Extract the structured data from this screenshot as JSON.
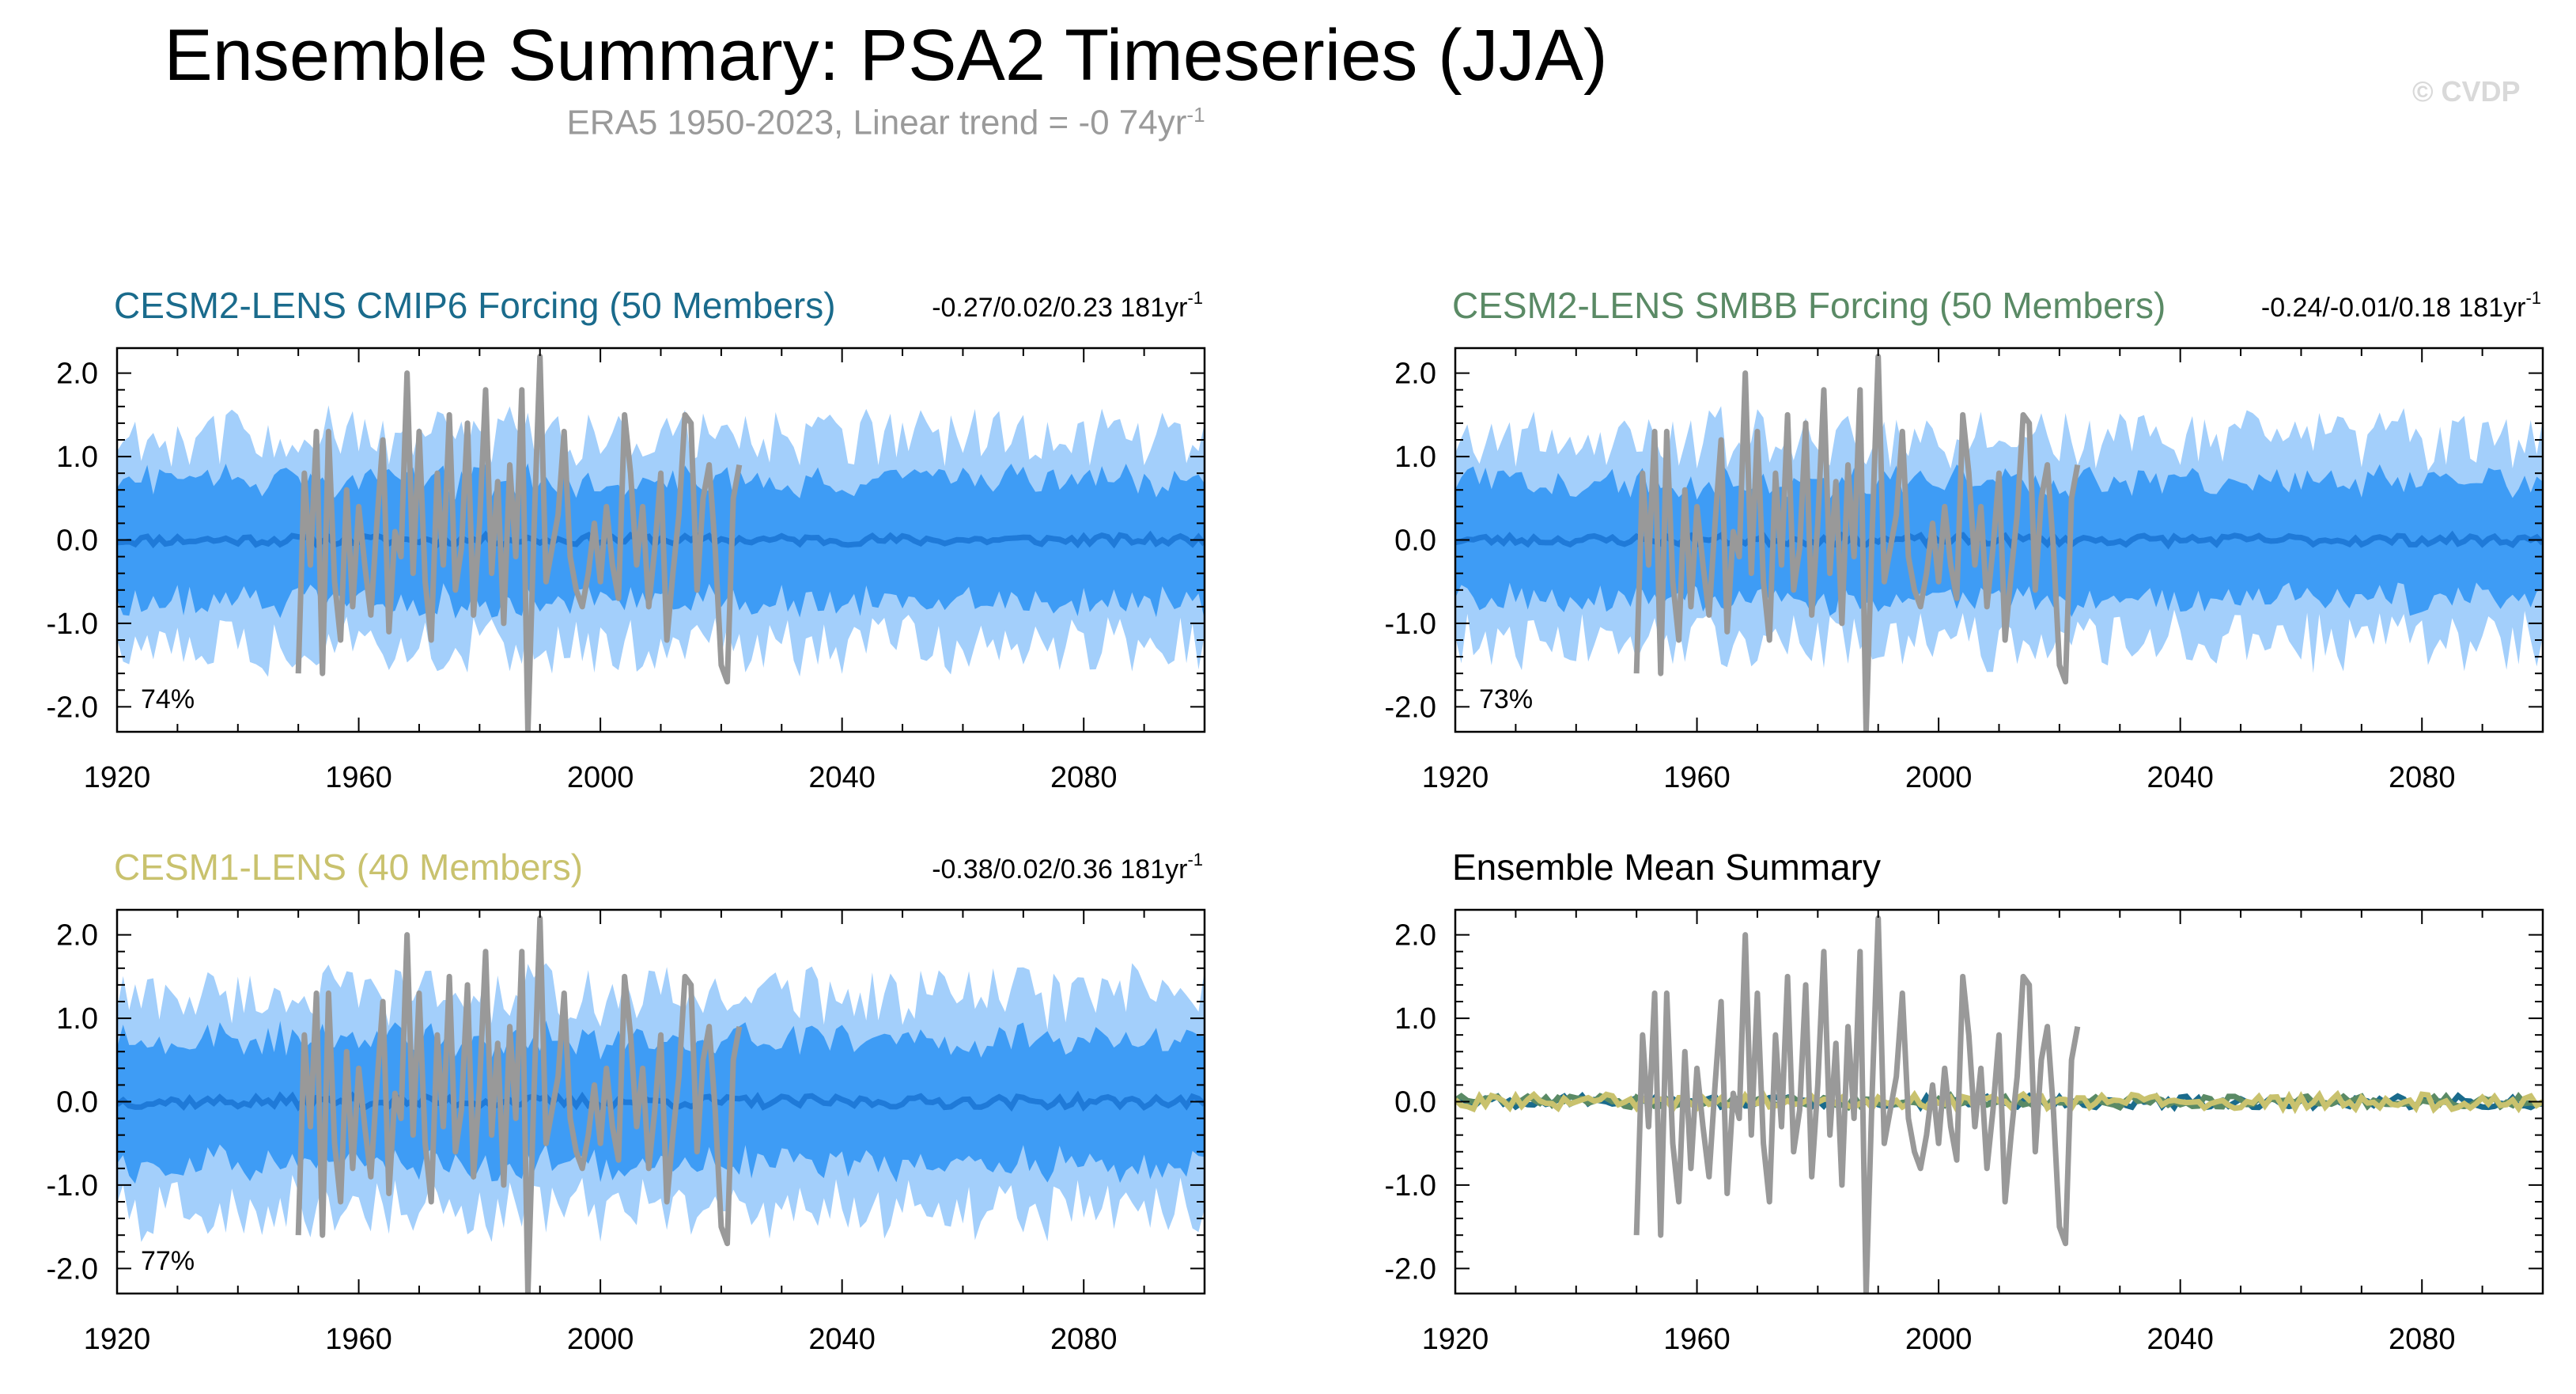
{
  "title": "Ensemble Summary: PSA2 Timeseries (JJA)",
  "subtitle": "ERA5 1950-2023, Linear trend = -0 74yr",
  "subtitle_sup": "-1",
  "watermark": "© CVDP",
  "colors": {
    "outer_band": "#a3cffb",
    "inner_band": "#3e9cf5",
    "ens_mean_line": "#1f7ad8",
    "obs_line": "#999999",
    "cmip6_title": "#1a6b8c",
    "smbb_title": "#5a8a65",
    "cesm1_title": "#c9c26e",
    "summary_title": "#000000"
  },
  "chart_data": [
    {
      "type": "area",
      "name": "cmip6",
      "title": "CESM2-LENS CMIP6 Forcing (50 Members)",
      "trend_label": "-0.27/0.02/0.23 181yr",
      "trend_sup": "-1",
      "pct_label": "74%",
      "xlim": [
        1920,
        2100
      ],
      "ylim": [
        -2.3,
        2.3
      ],
      "xticks": [
        1920,
        1960,
        2000,
        2040,
        2080
      ],
      "yticks": [
        2.0,
        1.0,
        0.0,
        -1.0,
        -2.0
      ],
      "ytick_labels": [
        "2.0",
        "1.0",
        "0.0",
        "-1.0",
        "-2.0"
      ],
      "mean_amp": 0.06,
      "outer_amp": 1.25,
      "inner_amp": 0.72,
      "seed": 11
    },
    {
      "type": "area",
      "name": "smbb",
      "title": "CESM2-LENS SMBB Forcing (50 Members)",
      "trend_label": "-0.24/-0.01/0.18 181yr",
      "trend_sup": "-1",
      "pct_label": "73%",
      "xlim": [
        1920,
        2100
      ],
      "ylim": [
        -2.3,
        2.3
      ],
      "xticks": [
        1920,
        1960,
        2000,
        2040,
        2080
      ],
      "yticks": [
        2.0,
        1.0,
        0.0,
        -1.0,
        -2.0
      ],
      "ytick_labels": [
        "2.0",
        "1.0",
        "0.0",
        "-1.0",
        "-2.0"
      ],
      "mean_amp": 0.06,
      "outer_amp": 1.22,
      "inner_amp": 0.7,
      "seed": 23
    },
    {
      "type": "area",
      "name": "cesm1",
      "title": "CESM1-LENS (40 Members)",
      "trend_label": "-0.38/0.02/0.36 181yr",
      "trend_sup": "-1",
      "pct_label": "77%",
      "xlim": [
        1920,
        2100
      ],
      "ylim": [
        -2.3,
        2.3
      ],
      "xticks": [
        1920,
        1960,
        2000,
        2040,
        2080
      ],
      "yticks": [
        2.0,
        1.0,
        0.0,
        -1.0,
        -2.0
      ],
      "ytick_labels": [
        "2.0",
        "1.0",
        "0.0",
        "-1.0",
        "-2.0"
      ],
      "mean_amp": 0.07,
      "outer_amp": 1.28,
      "inner_amp": 0.74,
      "seed": 37
    },
    {
      "type": "line",
      "name": "summary",
      "title": "Ensemble Mean Summary",
      "xlim": [
        1920,
        2100
      ],
      "ylim": [
        -2.3,
        2.3
      ],
      "xticks": [
        1920,
        1960,
        2000,
        2040,
        2080
      ],
      "yticks": [
        2.0,
        1.0,
        0.0,
        -1.0,
        -2.0
      ],
      "ytick_labels": [
        "2.0",
        "1.0",
        "0.0",
        "-1.0",
        "-2.0"
      ],
      "mean_lines": [
        {
          "color": "#1a6b8c",
          "seed": 11,
          "amp": 0.07
        },
        {
          "color": "#5a8a65",
          "seed": 23,
          "amp": 0.07
        },
        {
          "color": "#c9c26e",
          "seed": 37,
          "amp": 0.09
        }
      ]
    }
  ],
  "observed": {
    "x": [
      1950,
      1951,
      1952,
      1953,
      1954,
      1955,
      1956,
      1957,
      1958,
      1959,
      1960,
      1961,
      1962,
      1963,
      1964,
      1965,
      1966,
      1967,
      1968,
      1969,
      1970,
      1971,
      1972,
      1973,
      1974,
      1975,
      1976,
      1977,
      1978,
      1979,
      1980,
      1981,
      1982,
      1983,
      1984,
      1985,
      1986,
      1987,
      1988,
      1989,
      1990,
      1991,
      1992,
      1993,
      1994,
      1995,
      1996,
      1997,
      1998,
      1999,
      2000,
      2001,
      2002,
      2003,
      2004,
      2005,
      2006,
      2007,
      2008,
      2009,
      2010,
      2011,
      2012,
      2013,
      2014,
      2015,
      2016,
      2017,
      2018,
      2019,
      2020,
      2021,
      2022,
      2023
    ],
    "y": [
      -1.6,
      0.8,
      -0.3,
      1.3,
      -1.6,
      1.3,
      -0.5,
      -1.2,
      0.6,
      -0.8,
      0.4,
      -0.3,
      -0.9,
      0.2,
      1.2,
      -1.1,
      0.1,
      -0.2,
      2.0,
      -0.4,
      1.3,
      -0.5,
      -1.2,
      0.8,
      -0.3,
      1.5,
      -0.6,
      -0.1,
      1.4,
      -0.9,
      0.2,
      1.8,
      -0.4,
      0.7,
      -1.0,
      0.9,
      -0.2,
      1.8,
      -2.3,
      0.1,
      2.2,
      -0.5,
      -0.1,
      0.3,
      1.3,
      -0.2,
      -0.6,
      -0.8,
      -0.4,
      0.2,
      -0.5,
      0.4,
      -0.3,
      -0.7,
      1.5,
      0.8,
      -0.3,
      0.4,
      -0.8,
      -0.1,
      0.8,
      -1.2,
      -0.4,
      0.3,
      1.5,
      1.4,
      -0.6,
      0.5,
      0.9,
      -0.1,
      -1.5,
      -1.7,
      0.5,
      0.9
    ]
  }
}
